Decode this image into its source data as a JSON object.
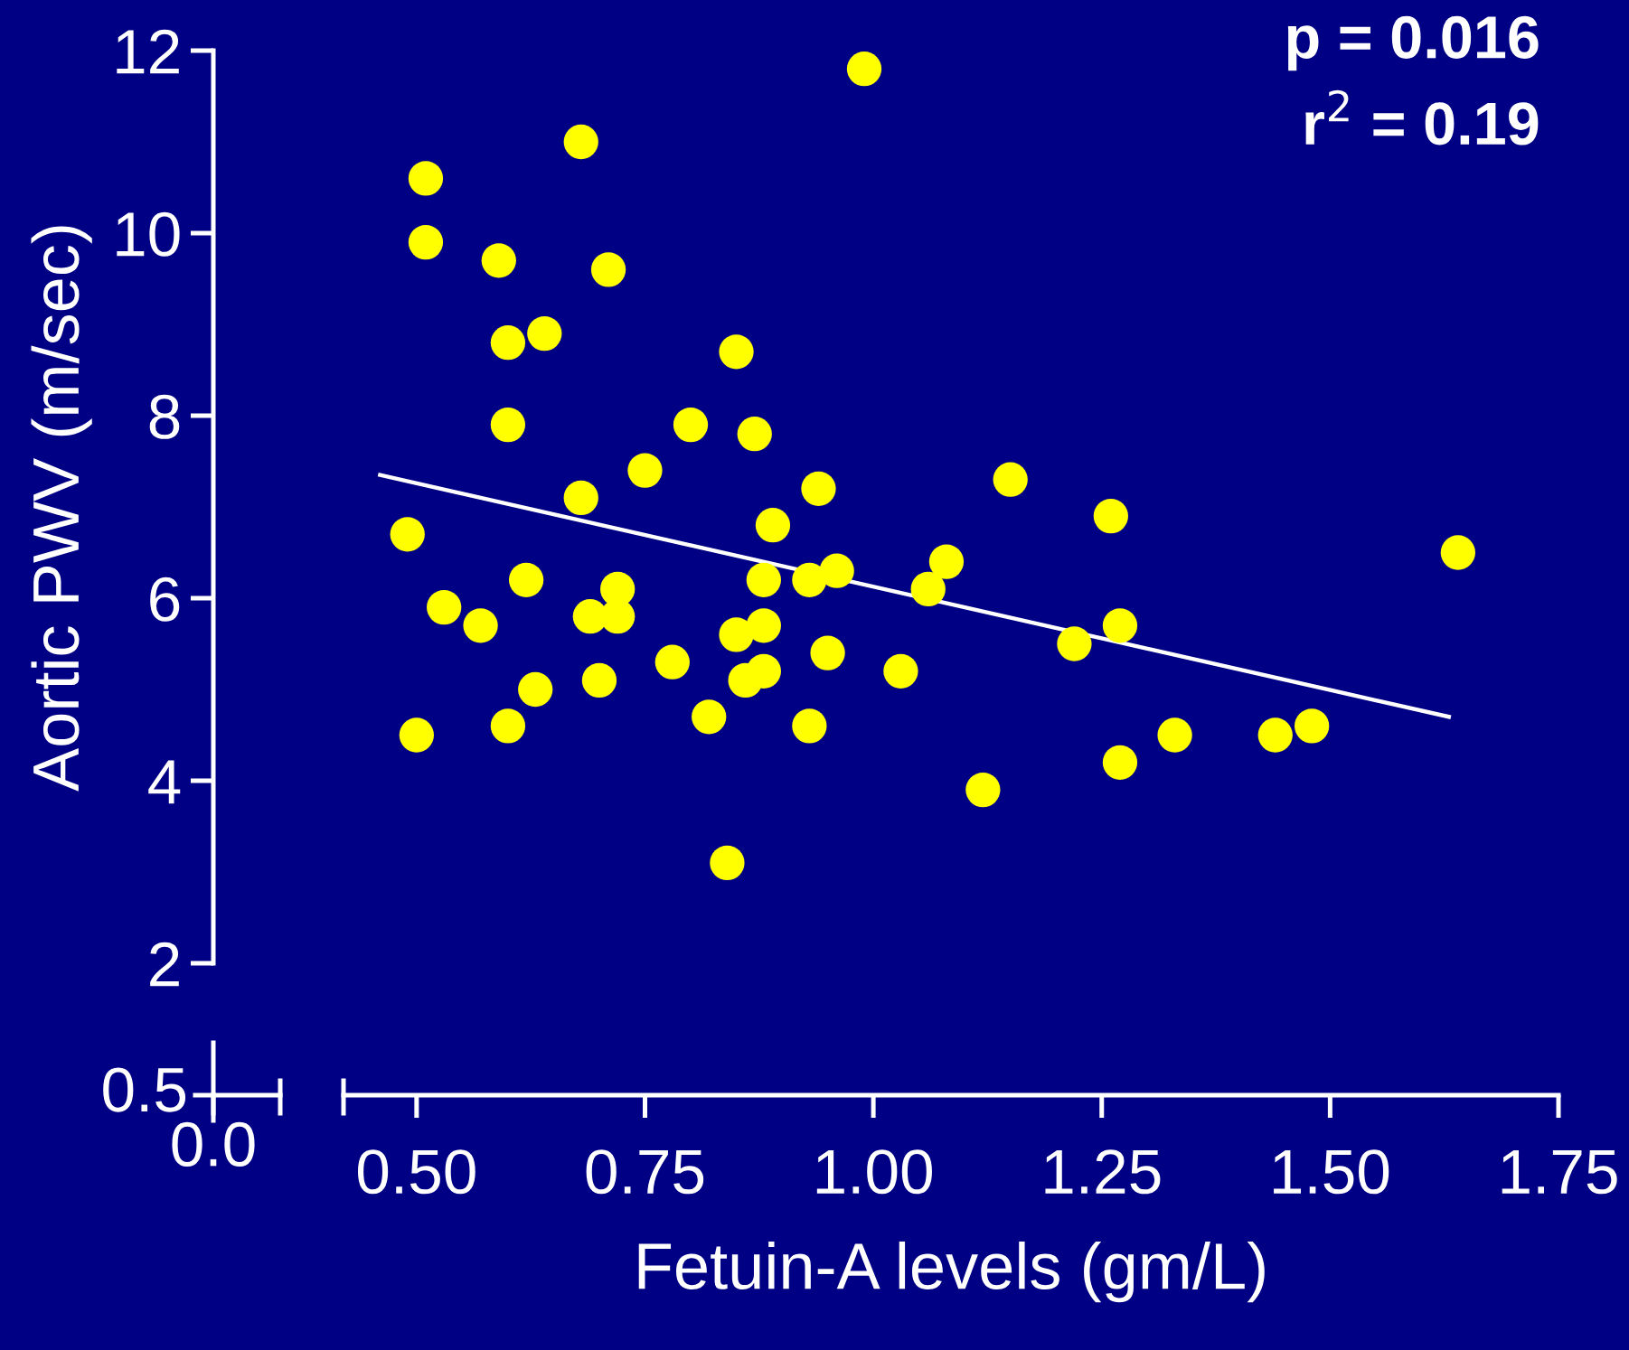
{
  "chart_data": {
    "type": "scatter",
    "xlabel": "Fetuin-A levels (gm/L)",
    "ylabel": "Aortic PWV (m/sec)",
    "annotations": [
      "p = 0.016",
      "r$^{2}$ = 0.19",
      "0.0",
      "0.5"
    ],
    "xlim": [
      0.42,
      1.75
    ],
    "xticks": [
      {
        "value": 0.5,
        "label": "0.50"
      },
      {
        "value": 0.75,
        "label": "0.75"
      },
      {
        "value": 1.0,
        "label": "1.00"
      },
      {
        "value": 1.25,
        "label": "1.25"
      },
      {
        "value": 1.5,
        "label": "1.50"
      },
      {
        "value": 1.75,
        "label": "1.75"
      }
    ],
    "ylim": [
      2,
      12
    ],
    "yticks": [
      2,
      4,
      6,
      8,
      10,
      12
    ],
    "series": [
      {
        "marker": "circle",
        "color": "#ffff00",
        "x": [
          0.49,
          0.5,
          0.51,
          0.51,
          0.53,
          0.57,
          0.59,
          0.6,
          0.6,
          0.6,
          0.62,
          0.63,
          0.64,
          0.68,
          0.68,
          0.69,
          0.7,
          0.71,
          0.72,
          0.72,
          0.75,
          0.78,
          0.8,
          0.82,
          0.84,
          0.85,
          0.85,
          0.86,
          0.87,
          0.88,
          0.88,
          0.88,
          0.89,
          0.93,
          0.93,
          0.94,
          0.95,
          0.96,
          0.99,
          1.03,
          1.06,
          1.08,
          1.12,
          1.15,
          1.22,
          1.26,
          1.27,
          1.27,
          1.33,
          1.44,
          1.48,
          1.64
        ],
        "values": [
          6.7,
          4.5,
          10.6,
          9.9,
          5.9,
          5.7,
          9.7,
          8.8,
          7.9,
          4.6,
          6.2,
          5.0,
          8.9,
          11.0,
          7.1,
          5.8,
          5.1,
          9.6,
          6.1,
          5.8,
          7.4,
          5.3,
          7.9,
          4.7,
          3.1,
          5.6,
          8.7,
          5.1,
          7.8,
          6.2,
          5.7,
          5.2,
          6.8,
          6.2,
          4.6,
          7.2,
          5.4,
          6.3,
          11.8,
          5.2,
          6.1,
          6.4,
          3.9,
          7.3,
          5.5,
          6.9,
          5.7,
          4.2,
          4.5,
          4.5,
          4.6,
          6.5
        ]
      },
      {
        "type": "line",
        "color": "#ffffff",
        "x": [
          0.46,
          1.63
        ],
        "values": [
          7.35,
          4.7
        ]
      }
    ]
  }
}
